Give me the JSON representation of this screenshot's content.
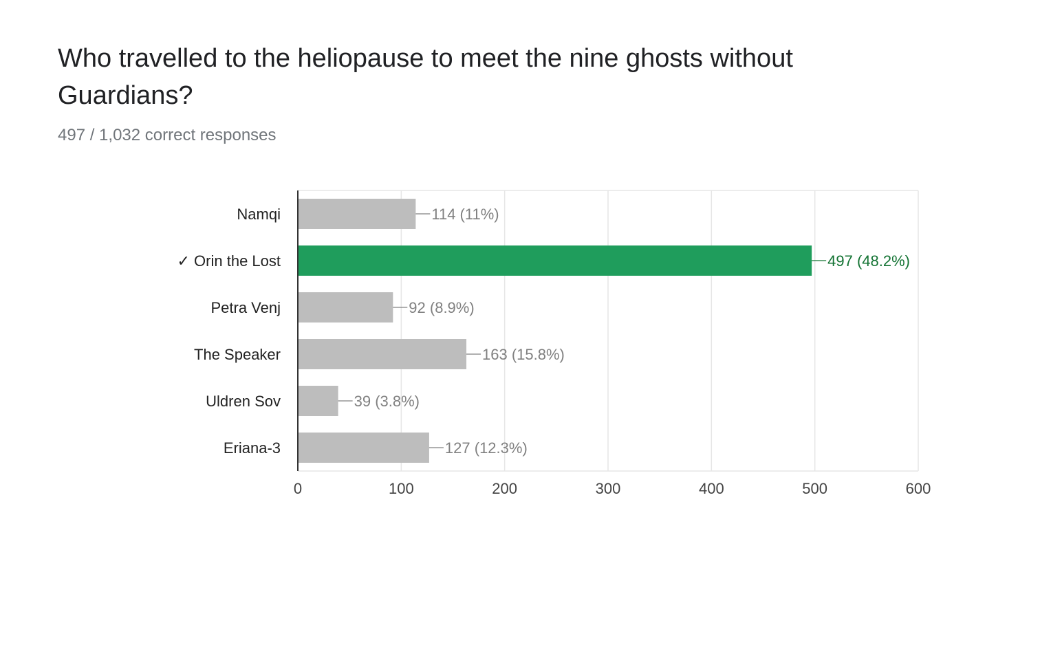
{
  "question": {
    "title": "Who travelled to the heliopause to meet the nine ghosts without Guardians?",
    "summary": "497 / 1,032 correct responses"
  },
  "colors": {
    "correct_bar": "#1f9d5c",
    "correct_label": "#137333",
    "bar": "#bdbdbd",
    "label": "#808080",
    "grid": "#e6e6e6",
    "axis": "#333333"
  },
  "chart_data": {
    "type": "bar",
    "orientation": "horizontal",
    "categories": [
      "Namqi",
      "Orin the Lost",
      "Petra Venj",
      "The Speaker",
      "Uldren Sov",
      "Eriana-3"
    ],
    "correct_marker": "✓",
    "correct": [
      false,
      true,
      false,
      false,
      false,
      false
    ],
    "values": [
      114,
      497,
      92,
      163,
      39,
      127
    ],
    "data_labels": [
      "114 (11%)",
      "497 (48.2%)",
      "92 (8.9%)",
      "163 (15.8%)",
      "39 (3.8%)",
      "127 (12.3%)"
    ],
    "xlim": [
      0,
      600
    ],
    "xticks": [
      0,
      100,
      200,
      300,
      400,
      500,
      600
    ],
    "grid": true,
    "legend": "none"
  }
}
